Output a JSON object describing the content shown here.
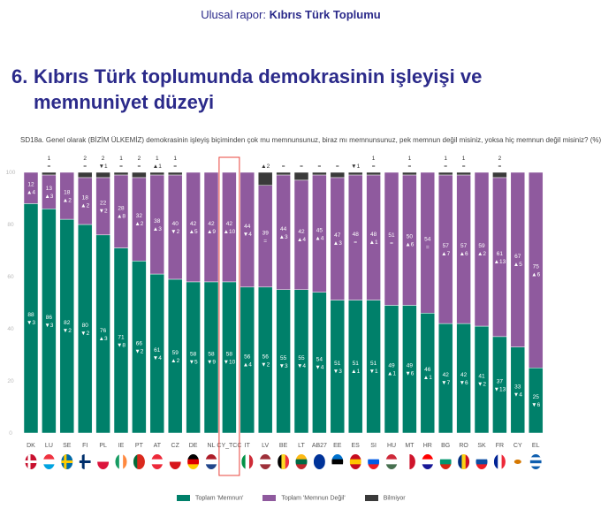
{
  "header": {
    "prefix": "Ulusal rapor: ",
    "bold": "Kıbrıs Türk Toplumu"
  },
  "section": {
    "number": "6.",
    "title": "Kıbrıs Türk toplumunda demokrasinin işleyişi ve memnuniyet düzeyi"
  },
  "chart_data": {
    "type": "bar",
    "stacked": true,
    "title": "SD18a. Genel olarak (BİZİM ÜLKEMİZ) demokrasinin işleyiş biçiminden çok mu memnunsunuz, biraz mı memnunsunuz, pek memnun değil misiniz, yoksa hiç memnun değil misiniz? (%)",
    "ylim": [
      0,
      100
    ],
    "yticks": [
      "0",
      "20",
      "40",
      "60",
      "80",
      "100"
    ],
    "highlight": "CY_TCC",
    "categories": [
      "DK",
      "LU",
      "SE",
      "FI",
      "PL",
      "IE",
      "PT",
      "AT",
      "CZ",
      "DE",
      "NL",
      "CY_TCC",
      "IT",
      "LV",
      "BE",
      "LT",
      "AB27",
      "EE",
      "ES",
      "SI",
      "HU",
      "MT",
      "HR",
      "BG",
      "RO",
      "SK",
      "FR",
      "CY",
      "EL"
    ],
    "series": [
      {
        "name": "Toplam 'Memnun'",
        "color": "#00806a",
        "values": [
          88,
          86,
          82,
          80,
          76,
          71,
          66,
          61,
          59,
          58,
          58,
          58,
          56,
          56,
          55,
          55,
          54,
          51,
          51,
          51,
          49,
          49,
          46,
          42,
          42,
          41,
          37,
          33,
          25
        ],
        "changes": [
          "▼3",
          "▼3",
          "▼2",
          "▼2",
          "▲3",
          "▼8",
          "▼2",
          "▼4",
          "▲2",
          "▼5",
          "▼9",
          "▼10",
          "▲4",
          "▼2",
          "▼3",
          "▼4",
          "▼4",
          "▼3",
          "▲1",
          "▼1",
          "▲1",
          "▼6",
          "▲1",
          "▼7",
          "▼6",
          "▼2",
          "▼13",
          "▼4",
          "▼6"
        ]
      },
      {
        "name": "Toplam 'Memnun Değil'",
        "color": "#8f5a9e",
        "values": [
          12,
          13,
          18,
          18,
          22,
          28,
          32,
          38,
          40,
          42,
          42,
          42,
          44,
          39,
          44,
          42,
          45,
          47,
          48,
          48,
          51,
          50,
          54,
          57,
          57,
          59,
          61,
          67,
          75
        ],
        "changes": [
          "▲4",
          "▲3",
          "▲2",
          "▲2",
          "▼2",
          "▲8",
          "▲2",
          "▲3",
          "▼2",
          "▲5",
          "▲9",
          "▲10",
          "▼4",
          "=",
          "▲3",
          "▲4",
          "▲4",
          "▲3",
          "=",
          "▲1",
          "=",
          "▲6",
          "=",
          "▲7",
          "▲6",
          "▲2",
          "▲13",
          "▲5",
          "▲6"
        ]
      },
      {
        "name": "Bilmiyor",
        "color": "#3a3a3a",
        "values": [
          0,
          1,
          0,
          2,
          2,
          1,
          2,
          1,
          1,
          0,
          0,
          0,
          0,
          5,
          1,
          3,
          1,
          2,
          1,
          1,
          0,
          1,
          0,
          1,
          1,
          0,
          2,
          0,
          0
        ],
        "labels": [
          "",
          "1",
          "",
          "2",
          "2",
          "1",
          "2",
          "1",
          "1",
          "",
          "",
          "",
          "",
          "",
          "",
          "",
          "",
          "",
          "",
          "1",
          "",
          "1",
          "",
          "1",
          "1",
          "",
          "2",
          "",
          ""
        ],
        "changes": [
          "",
          "=",
          "",
          "=",
          "▼1",
          "=",
          "=",
          "▲1",
          "=",
          "",
          "",
          "",
          "",
          "▲2",
          "=",
          "=",
          "=",
          "=",
          "▼1",
          "=",
          "",
          "=",
          "",
          "=",
          "=",
          "",
          "=",
          "",
          ""
        ]
      }
    ]
  },
  "flags": [
    {
      "d": "cross",
      "c": [
        "#c8102e",
        "#fff"
      ]
    },
    {
      "d": "h",
      "c": [
        "#ef3340",
        "#fff",
        "#00a3e0"
      ]
    },
    {
      "d": "cross",
      "c": [
        "#006aa7",
        "#fecc00"
      ]
    },
    {
      "d": "cross",
      "c": [
        "#fff",
        "#002f6c"
      ]
    },
    {
      "d": "h",
      "c": [
        "#fff",
        "#dc143c"
      ]
    },
    {
      "d": "v",
      "c": [
        "#169b62",
        "#fff",
        "#ff883e"
      ]
    },
    {
      "d": "v",
      "c": [
        "#046a38",
        "#da291c",
        "#da291c"
      ]
    },
    {
      "d": "h",
      "c": [
        "#ed2939",
        "#fff",
        "#ed2939"
      ]
    },
    {
      "d": "h",
      "c": [
        "#fff",
        "#d7141a"
      ]
    },
    {
      "d": "h",
      "c": [
        "#000",
        "#dd0000",
        "#ffce00"
      ]
    },
    {
      "d": "h",
      "c": [
        "#ae1c28",
        "#fff",
        "#21468b"
      ]
    },
    {
      "d": "none",
      "c": [
        "#fff"
      ]
    },
    {
      "d": "v",
      "c": [
        "#009246",
        "#fff",
        "#ce2b37"
      ]
    },
    {
      "d": "h",
      "c": [
        "#9e3039",
        "#fff",
        "#9e3039"
      ]
    },
    {
      "d": "v",
      "c": [
        "#000",
        "#fdda24",
        "#ef3340"
      ]
    },
    {
      "d": "h",
      "c": [
        "#fdb913",
        "#006a44",
        "#c1272d"
      ]
    },
    {
      "d": "h",
      "c": [
        "#003399"
      ]
    },
    {
      "d": "h",
      "c": [
        "#0072ce",
        "#000",
        "#fff"
      ]
    },
    {
      "d": "h",
      "c": [
        "#c60b1e",
        "#ffc400",
        "#c60b1e"
      ]
    },
    {
      "d": "h",
      "c": [
        "#fff",
        "#005ce5",
        "#ed1c24"
      ]
    },
    {
      "d": "h",
      "c": [
        "#ce2939",
        "#fff",
        "#477050"
      ]
    },
    {
      "d": "v",
      "c": [
        "#fff",
        "#cf142b"
      ]
    },
    {
      "d": "h",
      "c": [
        "#ff0000",
        "#fff",
        "#171796"
      ]
    },
    {
      "d": "h",
      "c": [
        "#fff",
        "#00966e",
        "#d62612"
      ]
    },
    {
      "d": "v",
      "c": [
        "#002b7f",
        "#fcd116",
        "#ce1126"
      ]
    },
    {
      "d": "h",
      "c": [
        "#fff",
        "#0b4ea2",
        "#ee1c25"
      ]
    },
    {
      "d": "v",
      "c": [
        "#002395",
        "#fff",
        "#ed2939"
      ]
    },
    {
      "d": "h",
      "c": [
        "#fff"
      ]
    },
    {
      "d": "h",
      "c": [
        "#0d5eaf",
        "#fff",
        "#0d5eaf",
        "#fff",
        "#0d5eaf"
      ]
    }
  ]
}
